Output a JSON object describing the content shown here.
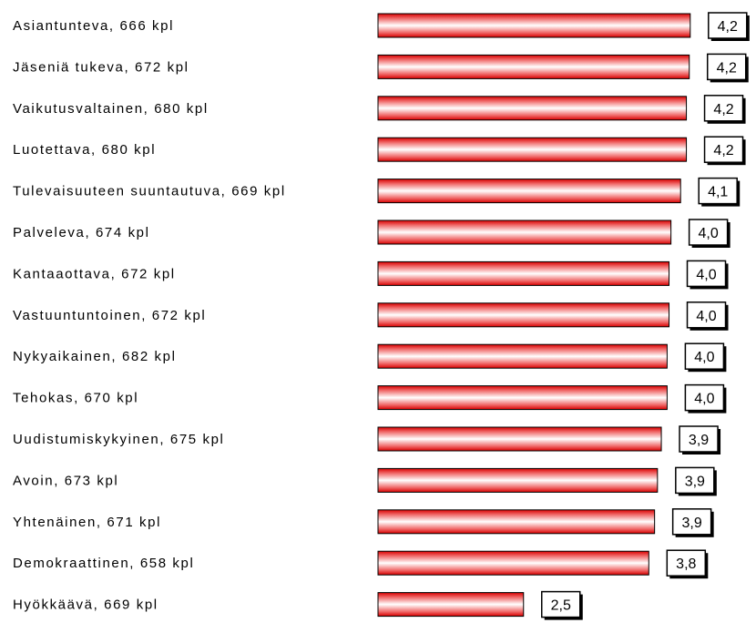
{
  "chart_data": {
    "type": "bar",
    "orientation": "horizontal",
    "categories": [
      "Asiantunteva, 666 kpl",
      "Jäseniä tukeva, 672 kpl",
      "Vaikutusvaltainen, 680 kpl",
      "Luotettava, 680 kpl",
      "Tulevaisuuteen suuntautuva, 669 kpl",
      "Palveleva, 674 kpl",
      "Kantaaottava, 672 kpl",
      "Vastuuntuntoinen, 672 kpl",
      "Nykyaikainen, 682 kpl",
      "Tehokas, 670 kpl",
      "Uudistumiskykyinen, 675 kpl",
      "Avoin, 673 kpl",
      "Yhtenäinen, 671 kpl",
      "Demokraattinen, 658 kpl",
      "Hyökkäävä, 669 kpl"
    ],
    "values": [
      4.24,
      4.23,
      4.2,
      4.2,
      4.14,
      4.04,
      4.02,
      4.02,
      4.0,
      4.0,
      3.94,
      3.9,
      3.87,
      3.81,
      2.51
    ],
    "value_labels": [
      "4,2",
      "4,2",
      "4,2",
      "4,2",
      "4,1",
      "4,0",
      "4,0",
      "4,0",
      "4,0",
      "4,0",
      "3,9",
      "3,9",
      "3,9",
      "3,8",
      "2,5"
    ],
    "title": "",
    "xlabel": "",
    "ylabel": "",
    "xlim": [
      1,
      5
    ],
    "grid": false,
    "legend": "none",
    "colors": {
      "bar_edge": "#d90000",
      "bar_mid": "#ffffff",
      "bar_outline": "#000000",
      "box_fill": "#ffffff",
      "box_border": "#000000",
      "box_shadow": "#000000"
    }
  }
}
